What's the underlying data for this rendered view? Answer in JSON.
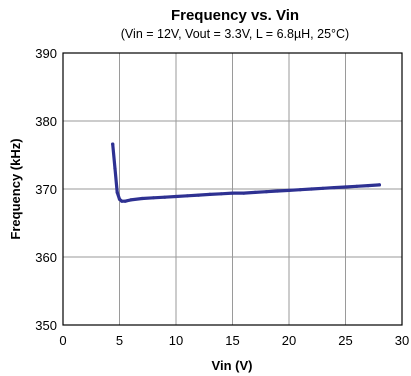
{
  "chart_data": {
    "type": "line",
    "title": "Frequency vs. Vin",
    "subtitle": "(Vin = 12V, Vout = 3.3V, L = 6.8µH, 25°C)",
    "xlabel": "Vin (V)",
    "ylabel": "Frequency (kHz)",
    "xlim": [
      0,
      30
    ],
    "ylim": [
      350,
      390
    ],
    "xticks": [
      0,
      5,
      10,
      15,
      20,
      25,
      30
    ],
    "yticks": [
      350,
      360,
      370,
      380,
      390
    ],
    "grid": true,
    "series": [
      {
        "color": "#2e3192",
        "x": [
          4.4,
          4.6,
          4.8,
          5.0,
          5.2,
          5.5,
          6.0,
          7.0,
          8.0,
          9.0,
          10.0,
          11.0,
          12.0,
          13.0,
          14.0,
          15.0,
          16.0,
          17.0,
          18.0,
          19.0,
          20.0,
          21.0,
          22.0,
          23.0,
          24.0,
          25.0,
          26.0,
          27.0,
          28.0
        ],
        "y": [
          376.6,
          373.0,
          369.5,
          368.5,
          368.2,
          368.2,
          368.4,
          368.6,
          368.7,
          368.8,
          368.9,
          369.0,
          369.1,
          369.2,
          369.3,
          369.4,
          369.4,
          369.5,
          369.6,
          369.7,
          369.8,
          369.9,
          370.0,
          370.1,
          370.2,
          370.3,
          370.4,
          370.5,
          370.6
        ]
      }
    ]
  }
}
